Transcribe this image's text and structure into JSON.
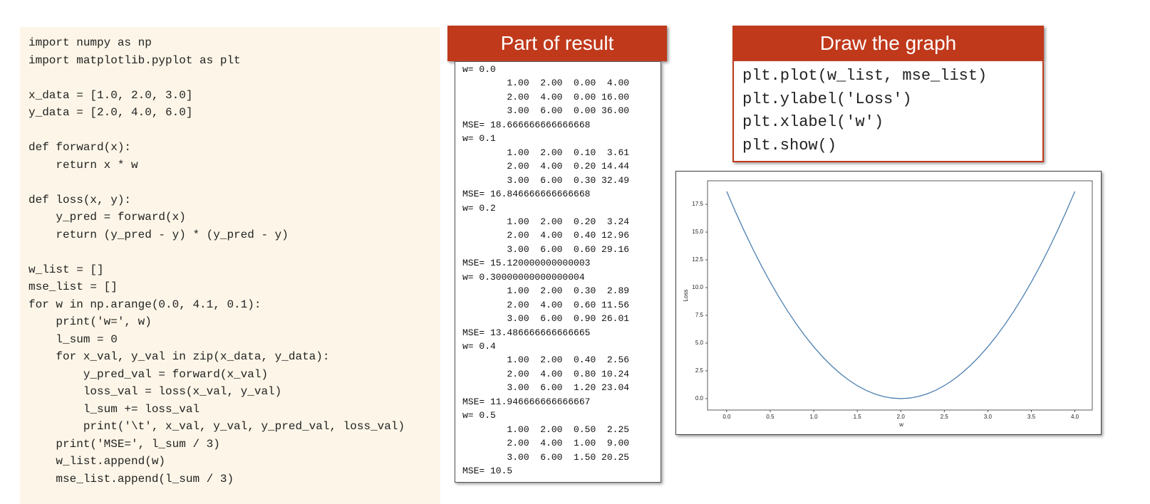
{
  "code": {
    "lines": [
      "import numpy as np",
      "import matplotlib.pyplot as plt",
      "",
      "x_data = [1.0, 2.0, 3.0]",
      "y_data = [2.0, 4.0, 6.0]",
      "",
      "def forward(x):",
      "    return x * w",
      "",
      "def loss(x, y):",
      "    y_pred = forward(x)",
      "    return (y_pred - y) * (y_pred - y)",
      "",
      "w_list = []",
      "mse_list = []",
      "for w in np.arange(0.0, 4.1, 0.1):",
      "    print('w=', w)",
      "    l_sum = 0",
      "    for x_val, y_val in zip(x_data, y_data):",
      "        y_pred_val = forward(x_val)",
      "        loss_val = loss(x_val, y_val)",
      "        l_sum += loss_val",
      "        print('\\t', x_val, y_val, y_pred_val, loss_val)",
      "    print('MSE=', l_sum / 3)",
      "    w_list.append(w)",
      "    mse_list.append(l_sum / 3)"
    ]
  },
  "result": {
    "title": "Part of result",
    "lines": [
      "w= 0.0",
      "\t1.00  2.00  0.00  4.00",
      "\t2.00  4.00  0.00 16.00",
      "\t3.00  6.00  0.00 36.00",
      "MSE= 18.666666666666668",
      "w= 0.1",
      "\t1.00  2.00  0.10  3.61",
      "\t2.00  4.00  0.20 14.44",
      "\t3.00  6.00  0.30 32.49",
      "MSE= 16.846666666666668",
      "w= 0.2",
      "\t1.00  2.00  0.20  3.24",
      "\t2.00  4.00  0.40 12.96",
      "\t3.00  6.00  0.60 29.16",
      "MSE= 15.120000000000003",
      "w= 0.30000000000000004",
      "\t1.00  2.00  0.30  2.89",
      "\t2.00  4.00  0.60 11.56",
      "\t3.00  6.00  0.90 26.01",
      "MSE= 13.486666666666665",
      "w= 0.4",
      "\t1.00  2.00  0.40  2.56",
      "\t2.00  4.00  0.80 10.24",
      "\t3.00  6.00  1.20 23.04",
      "MSE= 11.946666666666667",
      "w= 0.5",
      "\t1.00  2.00  0.50  2.25",
      "\t2.00  4.00  1.00  9.00",
      "\t3.00  6.00  1.50 20.25",
      "MSE= 10.5"
    ]
  },
  "graph": {
    "title": "Draw the graph",
    "lines": [
      "plt.plot(w_list, mse_list)",
      "plt.ylabel('Loss')",
      "plt.xlabel('w')",
      "plt.show()"
    ]
  },
  "chart_data": {
    "type": "line",
    "x_label": "w",
    "y_label": "Loss",
    "x": [
      0.0,
      0.1,
      0.2,
      0.3,
      0.4,
      0.5,
      0.6,
      0.7,
      0.8,
      0.9,
      1.0,
      1.1,
      1.2,
      1.3,
      1.4,
      1.5,
      1.6,
      1.7,
      1.8,
      1.9,
      2.0,
      2.1,
      2.2,
      2.3,
      2.4,
      2.5,
      2.6,
      2.7,
      2.8,
      2.9,
      3.0,
      3.1,
      3.2,
      3.3,
      3.4,
      3.5,
      3.6,
      3.7,
      3.8,
      3.9,
      4.0
    ],
    "series": [
      {
        "color": "#4c7fb0",
        "values": [
          18.667,
          16.847,
          15.12,
          13.487,
          11.947,
          10.5,
          9.147,
          7.887,
          6.72,
          5.647,
          4.667,
          3.78,
          2.987,
          2.287,
          1.68,
          1.167,
          0.747,
          0.42,
          0.187,
          0.047,
          0,
          0.047,
          0.187,
          0.42,
          0.747,
          1.167,
          1.68,
          2.287,
          2.987,
          3.78,
          4.667,
          5.647,
          6.72,
          7.887,
          9.147,
          10.5,
          11.947,
          13.487,
          15.12,
          16.847,
          18.667
        ]
      }
    ],
    "xlim": [
      -0.22,
      4.2
    ],
    "ylim": [
      -1.03,
      19.62
    ],
    "xticks": [
      {
        "value": 0,
        "label": "0.0"
      },
      0.5,
      {
        "value": 1,
        "label": "1.0"
      },
      1.5,
      {
        "value": 2,
        "label": "2.0"
      },
      2.5,
      {
        "value": 3,
        "label": "3.0"
      },
      3.5,
      {
        "value": 4,
        "label": "4.0"
      }
    ],
    "yticks": [
      {
        "value": 0,
        "label": "0.0"
      },
      2.5,
      {
        "value": 5,
        "label": "5.0"
      },
      7.5,
      {
        "value": 10,
        "label": "10.0"
      },
      12.5,
      {
        "value": 15,
        "label": "15.0"
      },
      17.5
    ]
  }
}
